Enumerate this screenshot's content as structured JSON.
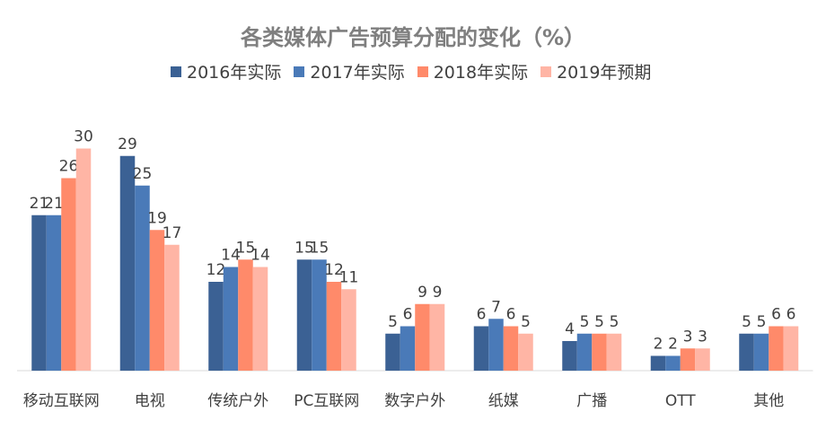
{
  "chart_data": {
    "type": "bar",
    "title": "各类媒体广告预算分配的变化（%）",
    "categories": [
      "移动互联网",
      "电视",
      "传统户外",
      "PC互联网",
      "数字户外",
      "纸媒",
      "广播",
      "OTT",
      "其他"
    ],
    "series": [
      {
        "name": "2016年实际",
        "color": "#3b6194",
        "values": [
          21,
          29,
          12,
          15,
          5,
          6,
          4,
          2,
          5
        ]
      },
      {
        "name": "2017年实际",
        "color": "#4a7ab8",
        "values": [
          21,
          25,
          14,
          15,
          6,
          7,
          5,
          2,
          5
        ]
      },
      {
        "name": "2018年实际",
        "color": "#ff8a6a",
        "values": [
          26,
          19,
          15,
          12,
          9,
          6,
          5,
          3,
          6
        ]
      },
      {
        "name": "2019年预期",
        "color": "#ffb5a5",
        "values": [
          30,
          17,
          14,
          11,
          9,
          5,
          5,
          3,
          6
        ]
      }
    ],
    "ylim": [
      0,
      30
    ],
    "legend": "top",
    "grid": false,
    "xlabel": "",
    "ylabel": ""
  }
}
